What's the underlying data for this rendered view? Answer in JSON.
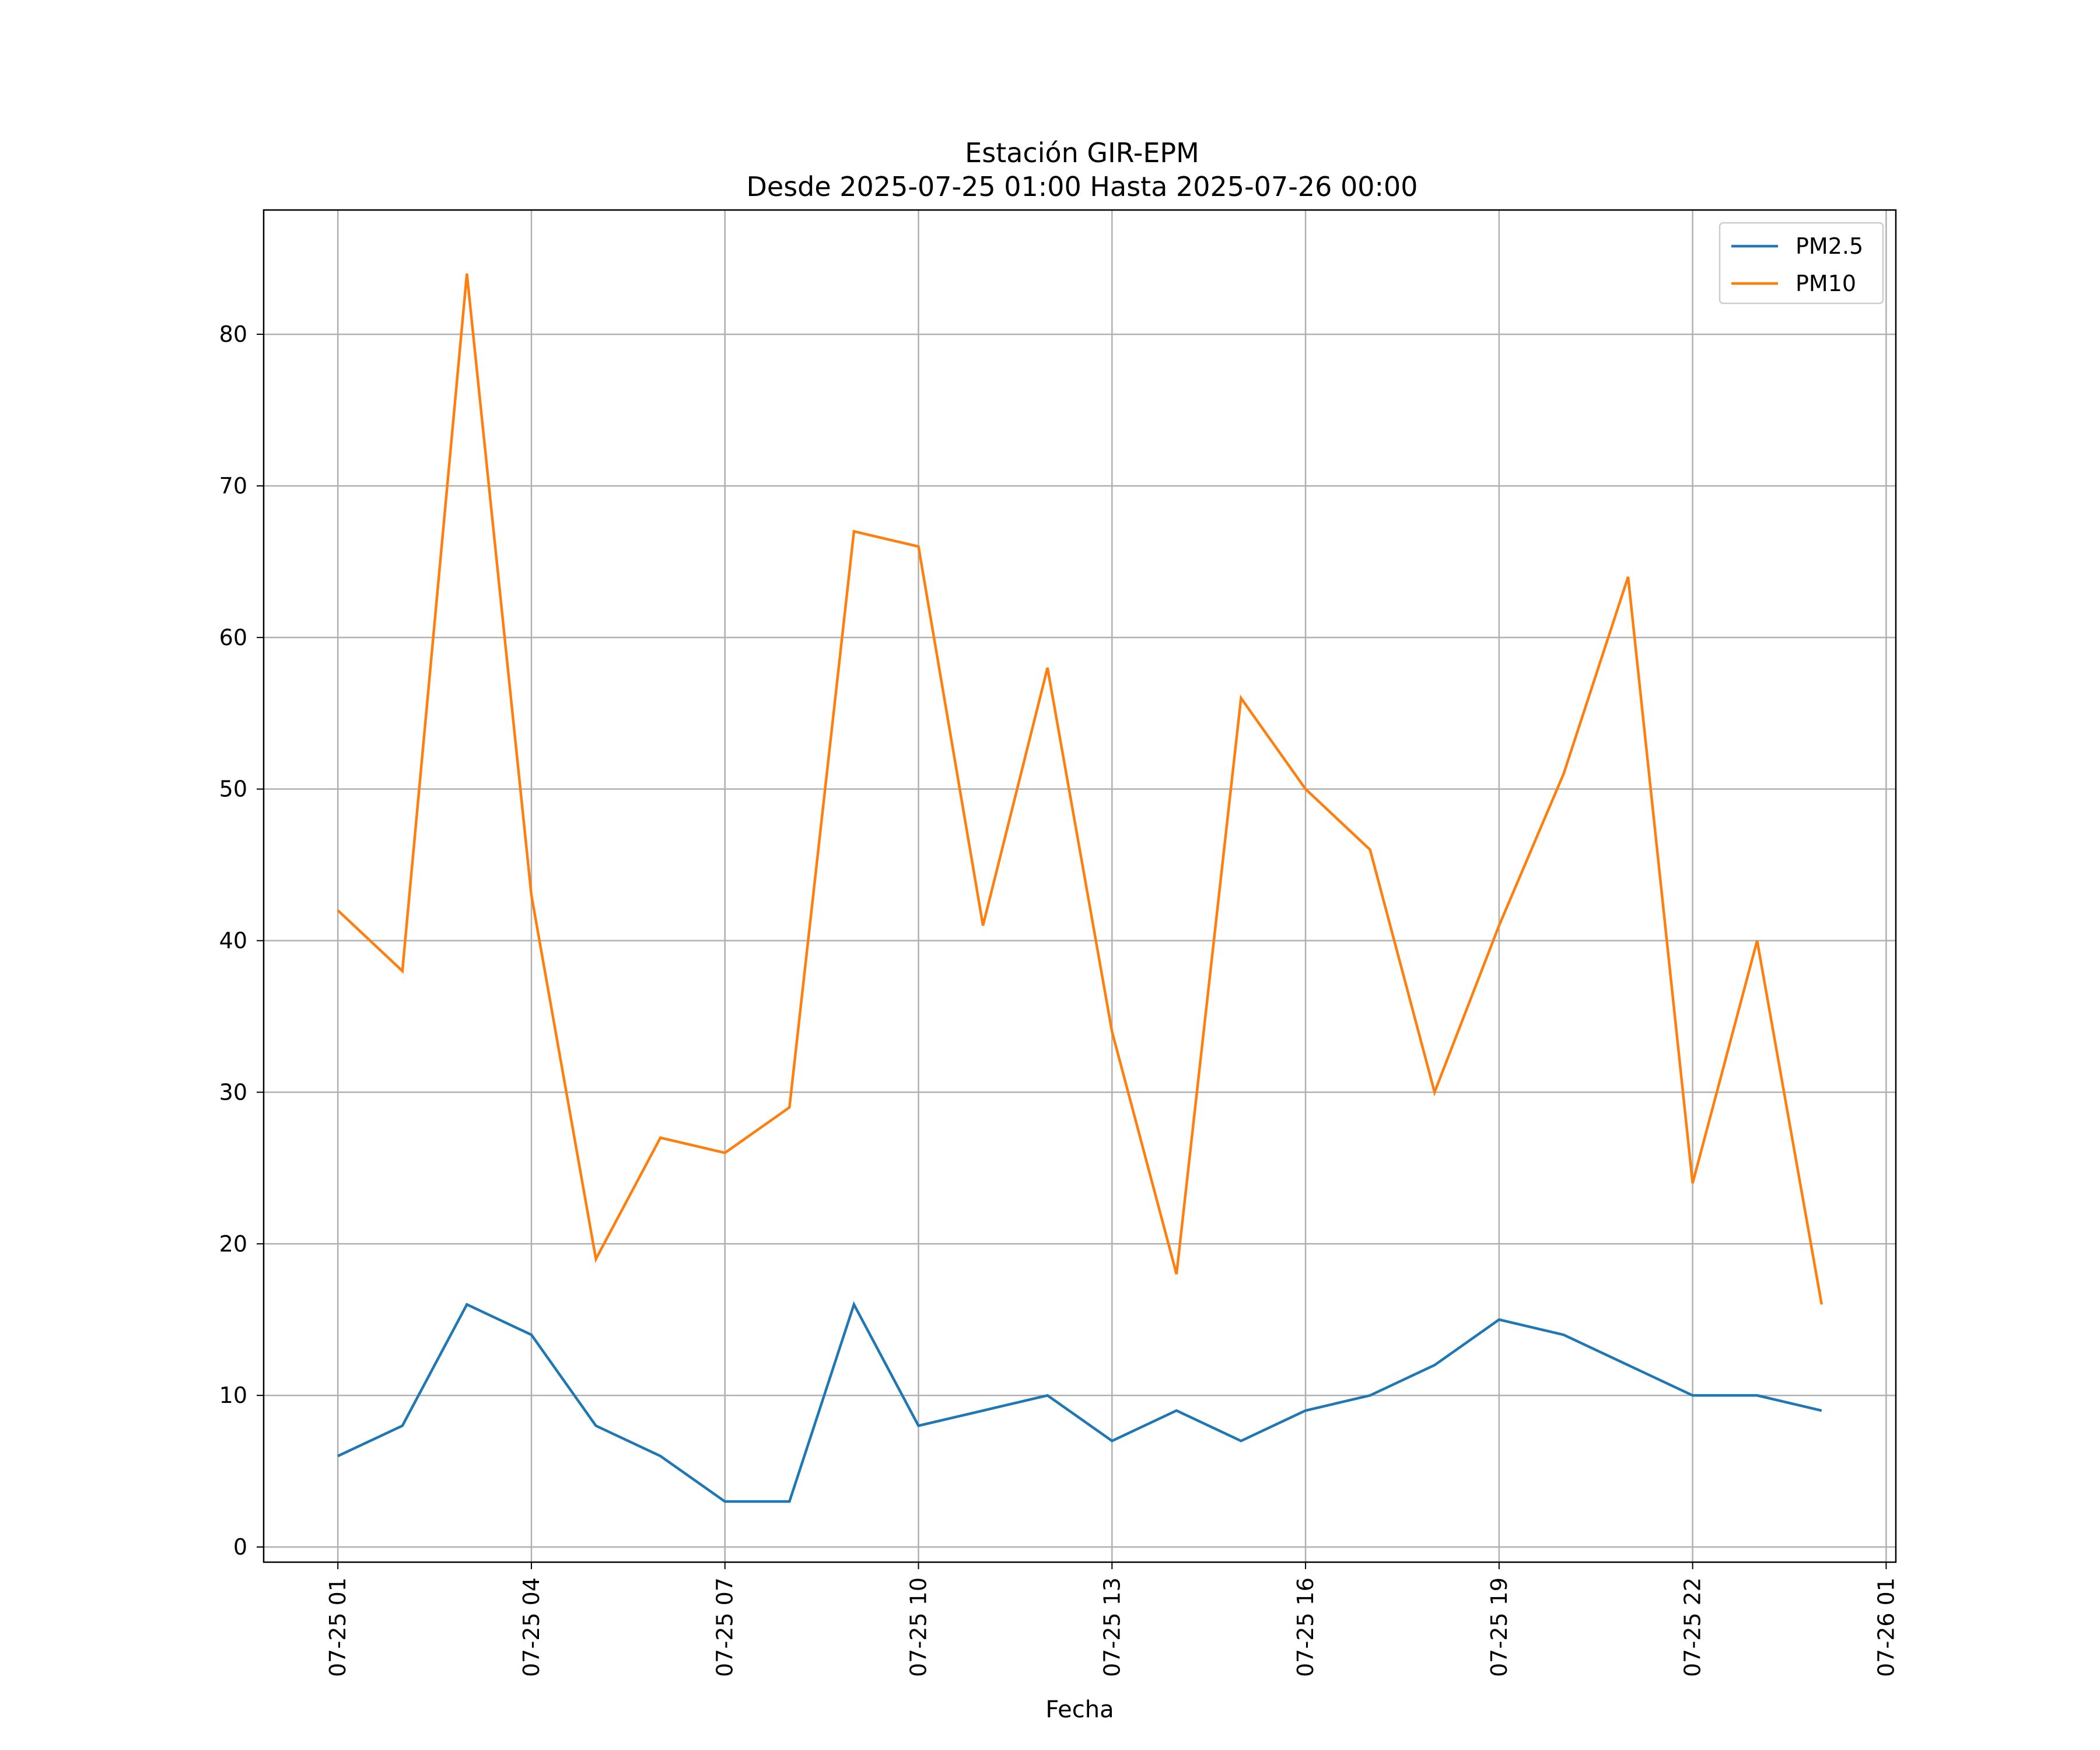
{
  "chart_data": {
    "type": "line",
    "title": "Estación GIR-EPM",
    "subtitle": "Desde 2025-07-25 01:00 Hasta 2025-07-26 00:00",
    "xlabel": "Fecha",
    "ylabel": "",
    "x": [
      "07-25 01",
      "07-25 02",
      "07-25 03",
      "07-25 04",
      "07-25 05",
      "07-25 06",
      "07-25 07",
      "07-25 08",
      "07-25 09",
      "07-25 10",
      "07-25 11",
      "07-25 12",
      "07-25 13",
      "07-25 14",
      "07-25 15",
      "07-25 16",
      "07-25 17",
      "07-25 18",
      "07-25 19",
      "07-25 20",
      "07-25 21",
      "07-25 22",
      "07-25 23",
      "07-26 00"
    ],
    "x_ticks": [
      "07-25 01",
      "07-25 04",
      "07-25 07",
      "07-25 10",
      "07-25 13",
      "07-25 16",
      "07-25 19",
      "07-25 22",
      "07-26 01"
    ],
    "y_ticks": [
      0,
      10,
      20,
      30,
      40,
      50,
      60,
      70,
      80
    ],
    "xlim": [
      -1.15,
      24.15
    ],
    "ylim": [
      -1,
      88.2
    ],
    "grid": true,
    "legend_position": "top-right",
    "series": [
      {
        "name": "PM2.5",
        "color": "#1f77b4",
        "values": [
          6,
          8,
          16,
          14,
          8,
          6,
          3,
          3,
          16,
          8,
          9,
          10,
          7,
          9,
          7,
          9,
          10,
          12,
          15,
          14,
          12,
          10,
          10,
          9
        ]
      },
      {
        "name": "PM10",
        "color": "#ff7f0e",
        "values": [
          42,
          38,
          84,
          43,
          19,
          27,
          26,
          29,
          67,
          66,
          41,
          58,
          34,
          18,
          56,
          50,
          46,
          30,
          41,
          51,
          64,
          24,
          40,
          16
        ]
      }
    ]
  }
}
